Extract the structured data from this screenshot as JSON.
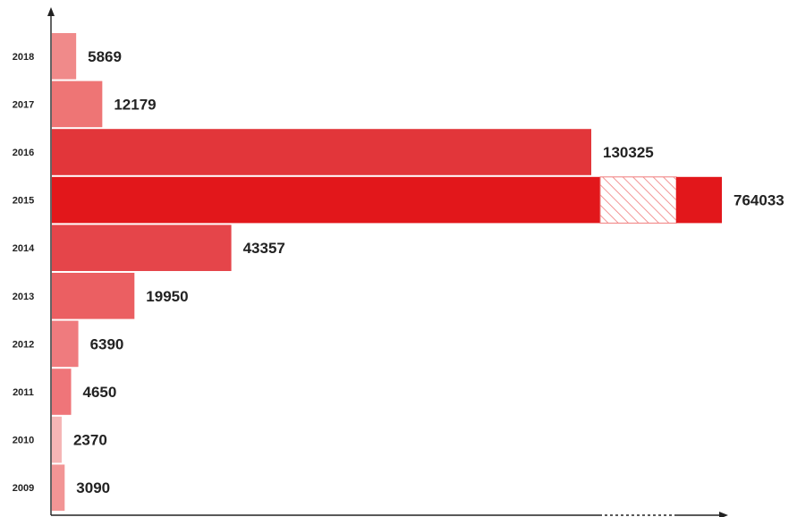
{
  "chart_data": {
    "type": "bar",
    "orientation": "horizontal",
    "axis_break": true,
    "categories": [
      "2018",
      "2017",
      "2016",
      "2015",
      "2014",
      "2013",
      "2012",
      "2011",
      "2010",
      "2009"
    ],
    "values": [
      5869,
      12179,
      130325,
      764033,
      43357,
      19950,
      6390,
      4650,
      2370,
      3090
    ],
    "value_labels": [
      "5869",
      "12179",
      "130325",
      "764033",
      "43357",
      "19950",
      "6390",
      "4650",
      "2370",
      "3090"
    ],
    "colors": [
      "#f08a8a",
      "#ee7575",
      "#e2363a",
      "#e2171b",
      "#e5454a",
      "#eb5f62",
      "#ef7b7e",
      "#ef7579",
      "#f5b5b5",
      "#f29595"
    ],
    "break_pattern_color": "#f07c7c",
    "title": "",
    "xlabel": "",
    "ylabel": "",
    "grid": false,
    "legend": "none"
  }
}
